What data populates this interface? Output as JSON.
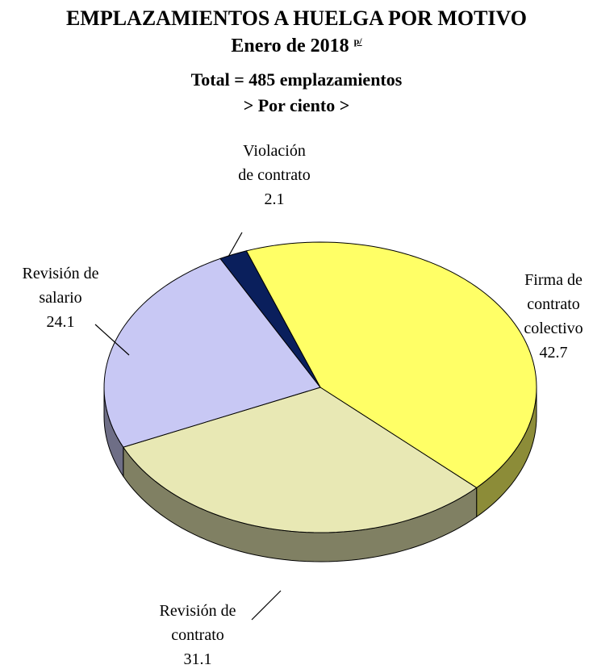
{
  "chart_data": {
    "type": "pie3d",
    "title": "EMPLAZAMIENTOS A HUELGA POR MOTIVO",
    "subtitle": "Enero de 2018",
    "subtitle_note": "p/",
    "total_label": "Total = 485 emplazamientos",
    "unit_label": "> Por ciento >",
    "categories": [
      "Firma de contrato colectivo",
      "Revisión de contrato",
      "Revisión de salario",
      "Violación de contrato"
    ],
    "values": [
      42.7,
      31.1,
      24.1,
      2.1
    ],
    "colors": [
      "#ffff66",
      "#e8e8b4",
      "#c8c8f4",
      "#0a1f5c"
    ]
  }
}
